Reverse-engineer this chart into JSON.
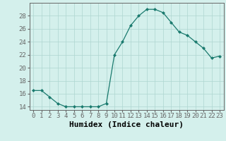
{
  "x": [
    0,
    1,
    2,
    3,
    4,
    5,
    6,
    7,
    8,
    9,
    10,
    11,
    12,
    13,
    14,
    15,
    16,
    17,
    18,
    19,
    20,
    21,
    22,
    23
  ],
  "y": [
    16.5,
    16.5,
    15.5,
    14.5,
    14.0,
    14.0,
    14.0,
    14.0,
    14.0,
    14.5,
    22.0,
    24.0,
    26.5,
    28.0,
    29.0,
    29.0,
    28.5,
    27.0,
    25.5,
    25.0,
    24.0,
    23.0,
    21.5,
    21.8
  ],
  "xlabel": "Humidex (Indice chaleur)",
  "ylim": [
    13.5,
    30.0
  ],
  "xlim": [
    -0.5,
    23.5
  ],
  "yticks": [
    14,
    16,
    18,
    20,
    22,
    24,
    26,
    28
  ],
  "xticks": [
    0,
    1,
    2,
    3,
    4,
    5,
    6,
    7,
    8,
    9,
    10,
    11,
    12,
    13,
    14,
    15,
    16,
    17,
    18,
    19,
    20,
    21,
    22,
    23
  ],
  "line_color": "#1a7a6e",
  "marker_color": "#1a7a6e",
  "bg_color": "#d4f0ec",
  "grid_color": "#aed6d0",
  "spine_color": "#666666",
  "xlabel_fontsize": 8,
  "tick_fontsize": 6.5
}
